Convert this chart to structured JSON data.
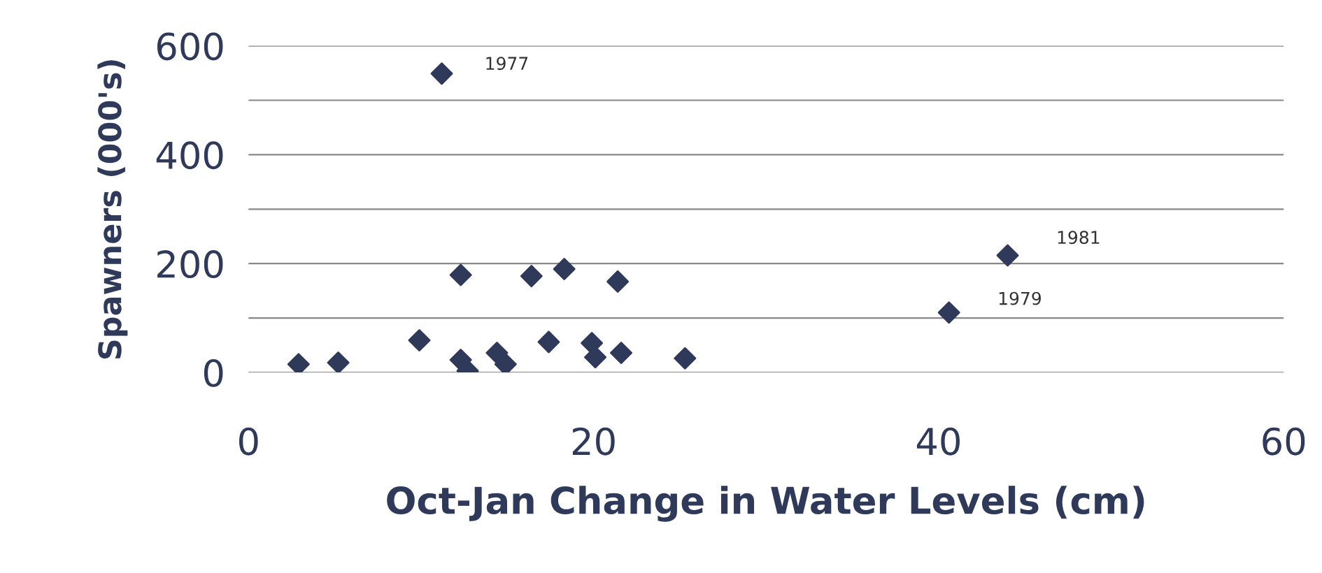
{
  "chart_data": {
    "type": "scatter",
    "xlabel": "Oct-Jan Change in Water Levels (cm)",
    "ylabel": "Spawners (000's)",
    "x": [
      2.9,
      5.2,
      9.9,
      11.2,
      12.3,
      12.3,
      12.7,
      14.4,
      14.9,
      16.4,
      17.4,
      18.3,
      19.9,
      20.1,
      21.4,
      21.6,
      25.3,
      40.6,
      44.0
    ],
    "series": [
      {
        "color": "#2f3a5a",
        "values": [
          15,
          18,
          59,
          549,
          179,
          23,
          3,
          36,
          15,
          177,
          56,
          190,
          54,
          28,
          167,
          36,
          26,
          110,
          215
        ]
      }
    ],
    "marker": "diamond",
    "grid": "y",
    "xlim": [
      0,
      60
    ],
    "ylim": [
      0,
      600
    ],
    "xticks": [
      0,
      20,
      40,
      60
    ],
    "yticks": [
      0,
      {
        "value": 100,
        "label": null
      },
      200,
      {
        "value": 300,
        "label": null
      },
      400,
      {
        "value": 500,
        "label": null
      },
      600
    ],
    "annotations": [
      {
        "text": "1977",
        "x": 11.2,
        "y": 549
      },
      {
        "text": "1981",
        "x": 44.0,
        "y": 215
      },
      {
        "text": "1979",
        "x": 40.6,
        "y": 110
      }
    ]
  }
}
